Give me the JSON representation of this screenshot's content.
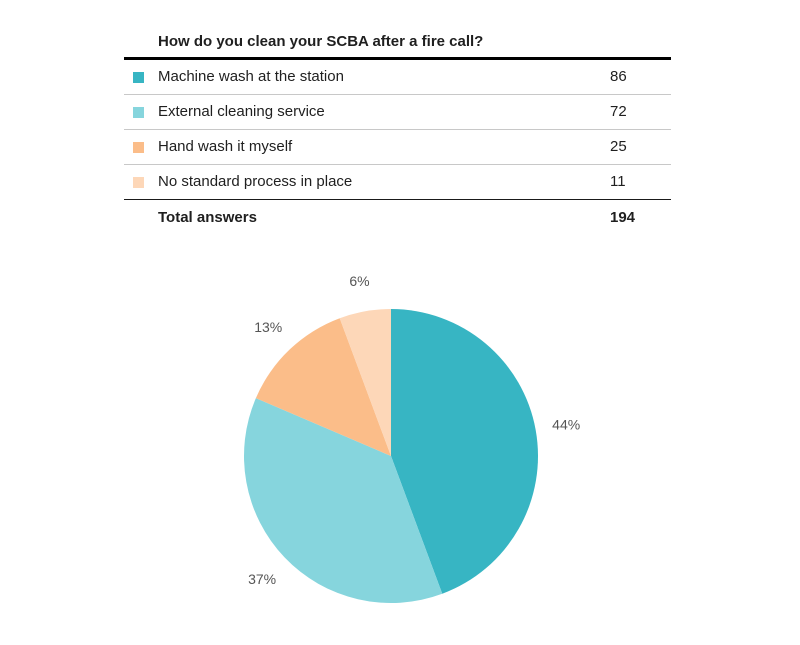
{
  "survey": {
    "question": "How do you clean your SCBA after a fire call?",
    "total_label": "Total answers",
    "total_value": "194"
  },
  "chart_data": {
    "type": "pie",
    "categories": [
      "Machine wash at the station",
      "External cleaning service",
      "Hand wash it myself",
      "No standard process in place"
    ],
    "values": [
      86,
      72,
      25,
      11
    ],
    "percent_labels": [
      "44%",
      "37%",
      "13%",
      "6%"
    ],
    "colors": [
      "#37b5c3",
      "#86d5dd",
      "#fbbd89",
      "#fdd7b8"
    ]
  }
}
